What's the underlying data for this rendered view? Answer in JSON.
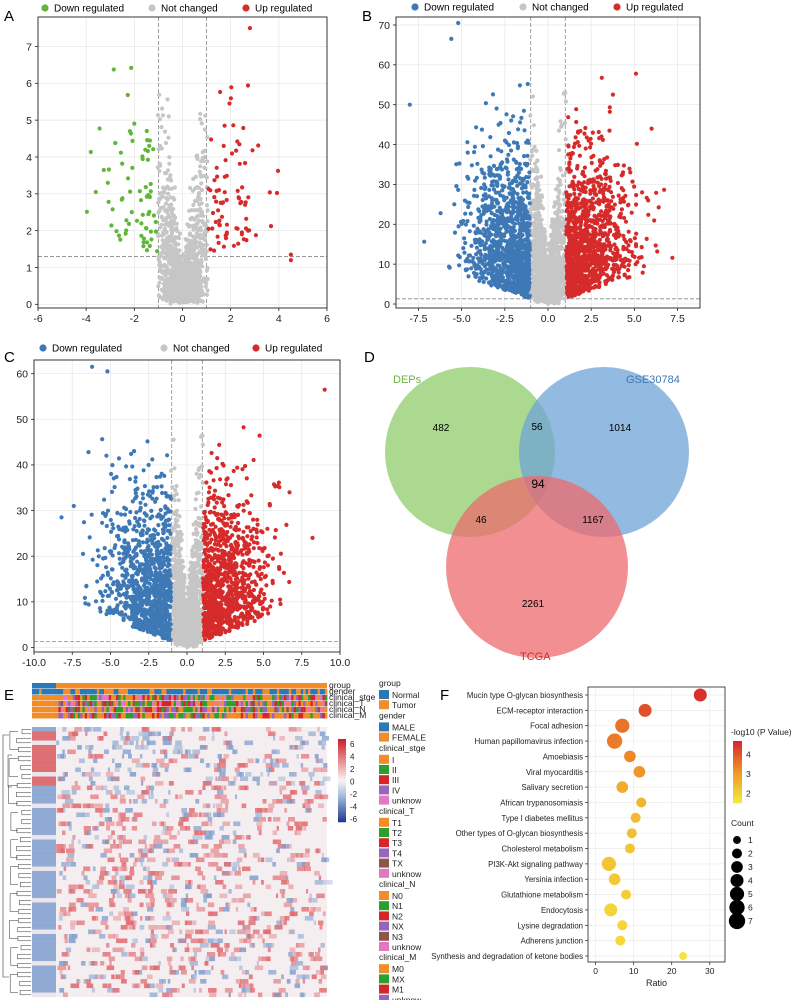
{
  "figure": {
    "panel_labels": [
      "A",
      "B",
      "C",
      "D",
      "E",
      "F"
    ],
    "legend_common": {
      "down": "Down regulated",
      "none": "Not changed",
      "up": "Up regulated"
    },
    "colors": {
      "down_green": "#5fb63a",
      "down_blue": "#3e79b6",
      "none": "#c6c6c6",
      "up": "#d62b2b",
      "venn_a": "#8fcc6a",
      "venn_b": "#6fa3d6",
      "venn_c": "#ec6a6e",
      "heat_high": "#d0232b",
      "heat_low": "#2b4a9a"
    }
  },
  "chart_data": [
    {
      "panel": "A",
      "type": "scatter",
      "title": "",
      "xlabel": "",
      "ylabel": "",
      "xlim": [
        -6,
        6
      ],
      "ylim": [
        -0.1,
        7.8
      ],
      "xticks": [
        -6,
        -4,
        -2,
        0,
        2,
        4,
        6
      ],
      "yticks": [
        0,
        1,
        2,
        3,
        4,
        5,
        6,
        7
      ],
      "fc_cut": [
        -1,
        1
      ],
      "p_cut": 1.3,
      "n_down": 70,
      "n_none": 1300,
      "n_up": 80,
      "down_max_x": -3.6,
      "up_max_x": 4.6,
      "max_y": 7.5,
      "outliers": [
        [
          2.8,
          7.5
        ],
        [
          4.5,
          1.35
        ],
        [
          4.5,
          1.2
        ],
        [
          -3.6,
          3.05
        ],
        [
          -3.1,
          3.3
        ]
      ]
    },
    {
      "panel": "B",
      "type": "scatter",
      "xlim": [
        -8.8,
        8.8
      ],
      "ylim": [
        -1,
        72
      ],
      "xticks": [
        -7.5,
        -5.0,
        -2.5,
        0.0,
        2.5,
        5.0,
        7.5
      ],
      "yticks": [
        0,
        10,
        20,
        30,
        40,
        50,
        60,
        70
      ],
      "fc_cut": [
        -1,
        1
      ],
      "p_cut": 1.3,
      "n_down": 1100,
      "n_none": 1500,
      "n_up": 1100,
      "max_y": 72,
      "outliers": [
        [
          -8,
          50
        ],
        [
          -5.2,
          70.5
        ],
        [
          -4.6,
          72
        ],
        [
          -5.6,
          66.5
        ],
        [
          6,
          44
        ],
        [
          5.8,
          26
        ]
      ]
    },
    {
      "panel": "C",
      "type": "scatter",
      "xlim": [
        -10,
        10
      ],
      "ylim": [
        -1,
        63
      ],
      "xticks": [
        -10.0,
        -7.5,
        -5.0,
        -2.5,
        0.0,
        2.5,
        5.0,
        7.5,
        10.0
      ],
      "yticks": [
        0,
        10,
        20,
        30,
        40,
        50,
        60
      ],
      "fc_cut": [
        -1,
        1
      ],
      "p_cut": 1.3,
      "n_down": 1000,
      "n_none": 1500,
      "n_up": 1000,
      "outliers": [
        [
          -7.4,
          31
        ],
        [
          -6.2,
          61.5
        ],
        [
          -5.2,
          60.5
        ],
        [
          9,
          56.5
        ],
        [
          -6.8,
          20.5
        ],
        [
          6.7,
          34
        ]
      ]
    },
    {
      "panel": "D",
      "type": "venn",
      "sets": [
        "DEPs",
        "GSE30784",
        "TCGA"
      ],
      "regions": {
        "a_only": 482,
        "b_only": 1014,
        "c_only": 2261,
        "ab": 56,
        "ac": 46,
        "bc": 1167,
        "abc": 94
      }
    },
    {
      "panel": "E",
      "type": "heatmap",
      "track_labels": [
        "group",
        "gender",
        "clinical_stge",
        "clinical_T",
        "clinical_N",
        "clinical_M"
      ],
      "color_scale_ticks": [
        6,
        4,
        2,
        0,
        -2,
        -4,
        -6
      ],
      "legend_groups": [
        {
          "title": "group",
          "items": [
            {
              "label": "Normal",
              "color": "#2a78b6"
            },
            {
              "label": "Tumor",
              "color": "#f28c28"
            }
          ]
        },
        {
          "title": "gender",
          "items": [
            {
              "label": "MALE",
              "color": "#2a78b6"
            },
            {
              "label": "FEMALE",
              "color": "#f28c28"
            }
          ]
        },
        {
          "title": "clinical_stge",
          "items": [
            {
              "label": "I",
              "color": "#f28c28"
            },
            {
              "label": "II",
              "color": "#2ca02c"
            },
            {
              "label": "III",
              "color": "#d62728"
            },
            {
              "label": "IV",
              "color": "#9467bd"
            },
            {
              "label": "unknow",
              "color": "#e377c2"
            }
          ]
        },
        {
          "title": "clinical_T",
          "items": [
            {
              "label": "T1",
              "color": "#f28c28"
            },
            {
              "label": "T2",
              "color": "#2ca02c"
            },
            {
              "label": "T3",
              "color": "#d62728"
            },
            {
              "label": "T4",
              "color": "#9467bd"
            },
            {
              "label": "TX",
              "color": "#8c564b"
            },
            {
              "label": "unknow",
              "color": "#e377c2"
            }
          ]
        },
        {
          "title": "clinical_N",
          "items": [
            {
              "label": "N0",
              "color": "#f28c28"
            },
            {
              "label": "N1",
              "color": "#2ca02c"
            },
            {
              "label": "N2",
              "color": "#d62728"
            },
            {
              "label": "NX",
              "color": "#9467bd"
            },
            {
              "label": "N3",
              "color": "#8c564b"
            },
            {
              "label": "unknow",
              "color": "#e377c2"
            }
          ]
        },
        {
          "title": "clinical_M",
          "items": [
            {
              "label": "M0",
              "color": "#f28c28"
            },
            {
              "label": "MX",
              "color": "#2ca02c"
            },
            {
              "label": "M1",
              "color": "#d62728"
            },
            {
              "label": "unknow",
              "color": "#9467bd"
            }
          ]
        }
      ]
    },
    {
      "panel": "F",
      "type": "scatter",
      "subtype": "kegg-bubble",
      "xlabel": "Ratio",
      "xlim": [
        -2,
        34
      ],
      "xticks": [
        0,
        10,
        20,
        30
      ],
      "color_title": "-log10 (P Value)",
      "color_ticks": [
        4,
        3,
        2
      ],
      "size_title": "Count",
      "size_ticks": [
        1,
        2,
        3,
        4,
        5,
        6,
        7
      ],
      "terms": [
        {
          "name": "Mucin type O-glycan biosynthesis",
          "ratio": 27.5,
          "count": 4,
          "logp": 4.6
        },
        {
          "name": "ECM-receptor interaction",
          "ratio": 13.0,
          "count": 4,
          "logp": 4.1
        },
        {
          "name": "Focal adhesion",
          "ratio": 7.0,
          "count": 5,
          "logp": 3.6
        },
        {
          "name": "Human papillomavirus infection",
          "ratio": 5.0,
          "count": 6,
          "logp": 3.5
        },
        {
          "name": "Amoebiasis",
          "ratio": 9.0,
          "count": 3,
          "logp": 3.3
        },
        {
          "name": "Viral myocarditis",
          "ratio": 11.5,
          "count": 3,
          "logp": 3.1
        },
        {
          "name": "Salivary secretion",
          "ratio": 7.0,
          "count": 3,
          "logp": 2.7
        },
        {
          "name": "African trypanosomiasis",
          "ratio": 12.0,
          "count": 2,
          "logp": 2.5
        },
        {
          "name": "Type I diabetes mellitus",
          "ratio": 10.5,
          "count": 2,
          "logp": 2.4
        },
        {
          "name": "Other types of O-glycan biosynthesis",
          "ratio": 9.5,
          "count": 2,
          "logp": 2.3
        },
        {
          "name": "Cholesterol metabolism",
          "ratio": 9.0,
          "count": 2,
          "logp": 2.2
        },
        {
          "name": "PI3K-Akt signaling pathway",
          "ratio": 3.5,
          "count": 5,
          "logp": 2.2
        },
        {
          "name": "Yersinia infection",
          "ratio": 5.0,
          "count": 3,
          "logp": 2.1
        },
        {
          "name": "Glutathione metabolism",
          "ratio": 8.0,
          "count": 2,
          "logp": 2.0
        },
        {
          "name": "Endocytosis",
          "ratio": 4.0,
          "count": 4,
          "logp": 1.9
        },
        {
          "name": "Lysine degradation",
          "ratio": 7.0,
          "count": 2,
          "logp": 1.9
        },
        {
          "name": "Adherens junction",
          "ratio": 6.5,
          "count": 2,
          "logp": 1.8
        },
        {
          "name": "Synthesis and degradation of ketone bodies",
          "ratio": 23.0,
          "count": 1,
          "logp": 1.6
        }
      ]
    }
  ]
}
